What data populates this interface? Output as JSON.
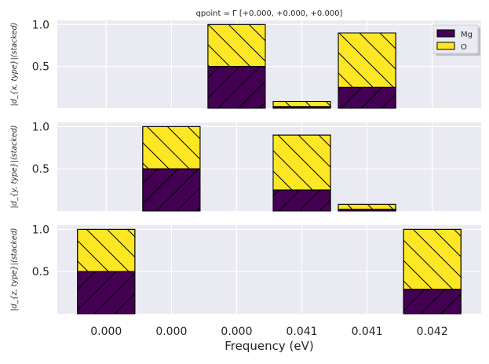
{
  "chart_data": {
    "type": "bar",
    "title": "qpoint = Γ [+0.000, +0.000, +0.000]",
    "xlabel": "Frequency (eV)",
    "categories": [
      "0.000",
      "0.000",
      "0.000",
      "0.041",
      "0.041",
      "0.042"
    ],
    "legend": {
      "placement": "top-right",
      "entries": [
        "Mg",
        "O"
      ]
    },
    "colors": {
      "Mg": "#440154",
      "O": "#fde725",
      "background": "#eaeaf2",
      "grid": "#ffffff",
      "edge": "#000000"
    },
    "grid": true,
    "stacked": true,
    "panels": [
      {
        "ylabel": "|d_{x, type}|(stacked)",
        "ylim": [
          0,
          1.05
        ],
        "yticks": [
          "0.5",
          "1.0"
        ],
        "series": [
          {
            "name": "Mg",
            "values": [
              0,
              0,
              0.5,
              0.02,
              0.25,
              0
            ]
          },
          {
            "name": "O",
            "values": [
              0,
              0,
              0.5,
              0.06,
              0.65,
              0
            ]
          }
        ]
      },
      {
        "ylabel": "|d_{y, type}|(stacked)",
        "ylim": [
          0,
          1.05
        ],
        "yticks": [
          "0.5",
          "1.0"
        ],
        "series": [
          {
            "name": "Mg",
            "values": [
              0,
              0.5,
              0,
              0.25,
              0.02,
              0
            ]
          },
          {
            "name": "O",
            "values": [
              0,
              0.5,
              0,
              0.65,
              0.06,
              0
            ]
          }
        ]
      },
      {
        "ylabel": "|d_{z, type}|(stacked)",
        "ylim": [
          0,
          1.05
        ],
        "yticks": [
          "0.5",
          "1.0"
        ],
        "series": [
          {
            "name": "Mg",
            "values": [
              0.5,
              0,
              0,
              0,
              0,
              0.29
            ]
          },
          {
            "name": "O",
            "values": [
              0.5,
              0,
              0,
              0,
              0,
              0.71
            ]
          }
        ]
      }
    ]
  }
}
